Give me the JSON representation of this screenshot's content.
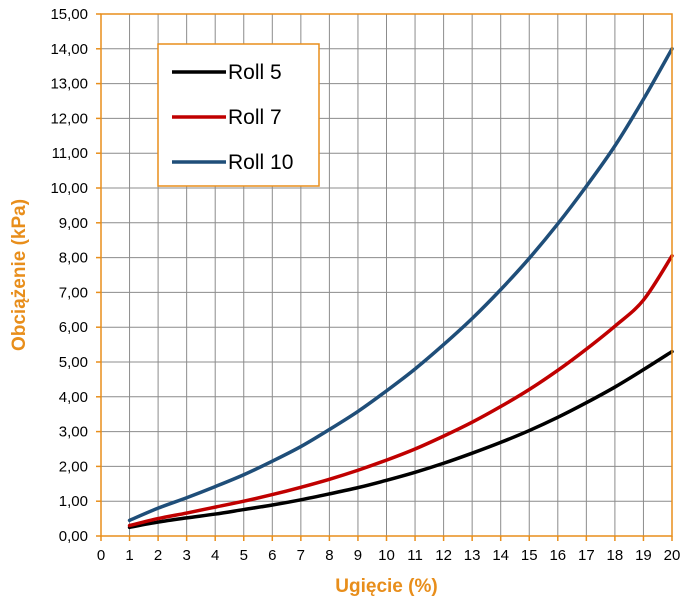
{
  "chart_data": {
    "type": "line",
    "xlabel": "Ugięcie (%)",
    "ylabel": "Obciążenie (kPa)",
    "xlim": [
      0,
      20
    ],
    "ylim": [
      0,
      15
    ],
    "x_ticks": [
      "0",
      "1",
      "2",
      "3",
      "4",
      "5",
      "6",
      "7",
      "8",
      "9",
      "10",
      "11",
      "12",
      "13",
      "14",
      "15",
      "16",
      "17",
      "18",
      "19",
      "20"
    ],
    "y_ticks": [
      "0,00",
      "1,00",
      "2,00",
      "3,00",
      "4,00",
      "5,00",
      "6,00",
      "7,00",
      "8,00",
      "9,00",
      "10,00",
      "11,00",
      "12,00",
      "13,00",
      "14,00",
      "15,00"
    ],
    "grid": true,
    "legend_position": "top-left",
    "colors": {
      "axis": "#E88E1B",
      "grid": "#8C8C8C",
      "legend_border": "#E88E1B"
    },
    "x": [
      1,
      2,
      3,
      4,
      5,
      6,
      7,
      8,
      9,
      10,
      11,
      12,
      13,
      14,
      15,
      16,
      17,
      18,
      19,
      20
    ],
    "series": [
      {
        "name": "Roll 5",
        "color": "#000000",
        "values": [
          0.25,
          0.4,
          0.52,
          0.63,
          0.76,
          0.89,
          1.04,
          1.21,
          1.39,
          1.6,
          1.83,
          2.09,
          2.38,
          2.69,
          3.03,
          3.41,
          3.83,
          4.28,
          4.78,
          5.3
        ]
      },
      {
        "name": "Roll 7",
        "color": "#C00000",
        "values": [
          0.3,
          0.5,
          0.66,
          0.83,
          1.0,
          1.19,
          1.4,
          1.63,
          1.89,
          2.18,
          2.5,
          2.87,
          3.27,
          3.72,
          4.21,
          4.76,
          5.37,
          6.03,
          6.78,
          8.05
        ]
      },
      {
        "name": "Roll 10",
        "color": "#1F4E79",
        "values": [
          0.45,
          0.8,
          1.1,
          1.42,
          1.76,
          2.15,
          2.57,
          3.06,
          3.58,
          4.17,
          4.8,
          5.5,
          6.25,
          7.08,
          7.98,
          8.97,
          10.05,
          11.21,
          12.55,
          14.0
        ]
      }
    ]
  }
}
